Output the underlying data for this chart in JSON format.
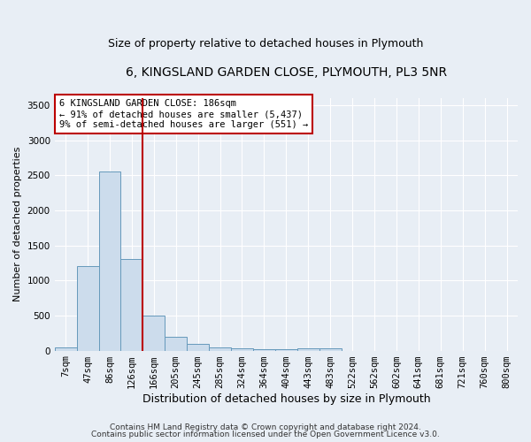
{
  "title1": "6, KINGSLAND GARDEN CLOSE, PLYMOUTH, PL3 5NR",
  "title2": "Size of property relative to detached houses in Plymouth",
  "xlabel": "Distribution of detached houses by size in Plymouth",
  "ylabel": "Number of detached properties",
  "bar_labels": [
    "7sqm",
    "47sqm",
    "86sqm",
    "126sqm",
    "166sqm",
    "205sqm",
    "245sqm",
    "285sqm",
    "324sqm",
    "364sqm",
    "404sqm",
    "443sqm",
    "483sqm",
    "522sqm",
    "562sqm",
    "602sqm",
    "641sqm",
    "681sqm",
    "721sqm",
    "760sqm",
    "800sqm"
  ],
  "bar_values": [
    50,
    1200,
    2550,
    1300,
    500,
    200,
    100,
    40,
    30,
    25,
    20,
    30,
    30,
    0,
    0,
    0,
    0,
    0,
    0,
    0,
    0
  ],
  "bar_color": "#ccdcec",
  "bar_edge_color": "#6699bb",
  "bar_edge_width": 0.7,
  "property_line_index": 4,
  "property_line_color": "#bb0000",
  "annotation_text": "6 KINGSLAND GARDEN CLOSE: 186sqm\n← 91% of detached houses are smaller (5,437)\n9% of semi-detached houses are larger (551) →",
  "annotation_box_facecolor": "#ffffff",
  "annotation_box_edgecolor": "#bb0000",
  "ylim": [
    0,
    3600
  ],
  "background_color": "#e8eef5",
  "grid_color": "#ffffff",
  "footer1": "Contains HM Land Registry data © Crown copyright and database right 2024.",
  "footer2": "Contains public sector information licensed under the Open Government Licence v3.0.",
  "title1_fontsize": 10,
  "title2_fontsize": 9,
  "xlabel_fontsize": 9,
  "ylabel_fontsize": 8,
  "tick_fontsize": 7.5,
  "ann_fontsize": 7.5,
  "footer_fontsize": 6.5
}
